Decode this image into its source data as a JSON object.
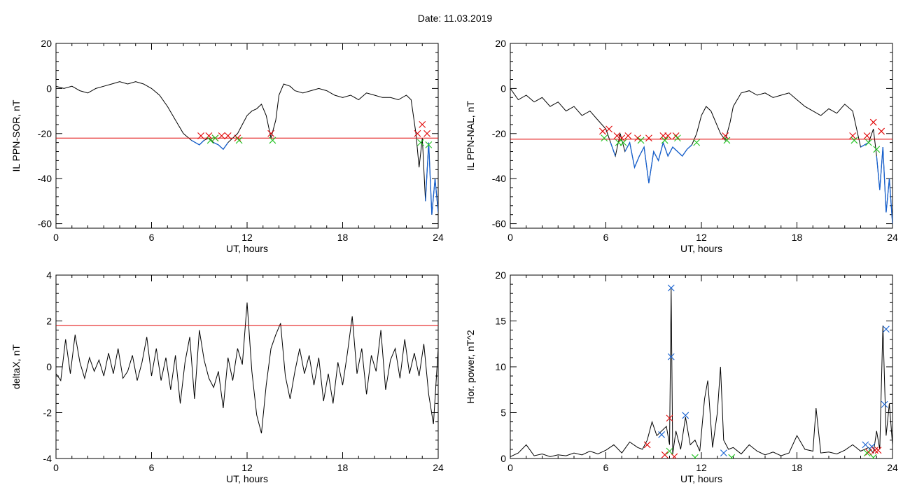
{
  "page": {
    "title": "Date:  11.03.2019"
  },
  "colors": {
    "threshold": "#e00000",
    "highlight": "#1560d0",
    "signal": "#000000",
    "marker_red": "#e00000",
    "marker_green": "#1fc21f",
    "marker_blue": "#1560d0"
  },
  "chart_data": [
    {
      "type": "line",
      "xlabel": "UT, hours",
      "ylabel": "IL PPN-SOR, nT",
      "xlim": [
        0,
        24
      ],
      "ylim": [
        -62,
        20
      ],
      "xticks": [
        0,
        6,
        12,
        18,
        24
      ],
      "yticks": [
        20,
        0,
        -20,
        -40,
        -60
      ],
      "threshold": -22,
      "series": [
        {
          "x": [
            0,
            0.5,
            1,
            1.5,
            2,
            2.5,
            3,
            3.5,
            4,
            4.5,
            5,
            5.5,
            6,
            6.5,
            7,
            7.5,
            8,
            8.5,
            9,
            9.3,
            9.6,
            9.9,
            10.2,
            10.5,
            10.8,
            11.1,
            11.4,
            11.7,
            12,
            12.3,
            12.6,
            12.9,
            13.2,
            13.5,
            13.8,
            14,
            14.3,
            14.7,
            15,
            15.5,
            16,
            16.5,
            17,
            17.5,
            18,
            18.5,
            19,
            19.5,
            20,
            20.5,
            21,
            21.5,
            22,
            22.3,
            22.6,
            22.8,
            23,
            23.2,
            23.4,
            23.6,
            23.8,
            24
          ],
          "y": [
            1,
            0,
            1,
            -1,
            -2,
            0,
            1,
            2,
            3,
            2,
            3,
            2,
            0,
            -3,
            -8,
            -14,
            -20,
            -23,
            -25,
            -23,
            -22,
            -24,
            -25,
            -27,
            -24,
            -22,
            -20,
            -16,
            -12,
            -10,
            -9,
            -7,
            -12,
            -22,
            -14,
            -3,
            2,
            1,
            -1,
            -2,
            -1,
            0,
            -1,
            -3,
            -4,
            -3,
            -5,
            -2,
            -3,
            -4,
            -4,
            -5,
            -3,
            -5,
            -20,
            -35,
            -22,
            -50,
            -24,
            -56,
            -40,
            -55
          ]
        }
      ],
      "markers": {
        "red": {
          "x": [
            9.1,
            9.6,
            10.0,
            10.4,
            10.8,
            11.4,
            13.5,
            22.7,
            23.0,
            23.3
          ],
          "y": [
            -21,
            -21,
            -22,
            -21,
            -21,
            -22,
            -20,
            -20,
            -16,
            -20
          ]
        },
        "green": {
          "x": [
            9.7,
            10.0,
            11.5,
            13.6,
            22.9,
            23.4
          ],
          "y": [
            -23,
            -22,
            -23,
            -23,
            -24,
            -25
          ]
        }
      }
    },
    {
      "type": "line",
      "xlabel": "UT, hours",
      "ylabel": "IL PPN-NAL, nT",
      "xlim": [
        0,
        24
      ],
      "ylim": [
        -62,
        20
      ],
      "xticks": [
        0,
        6,
        12,
        18,
        24
      ],
      "yticks": [
        20,
        0,
        -20,
        -40,
        -60
      ],
      "threshold": -22.5,
      "series": [
        {
          "x": [
            0,
            0.5,
            1,
            1.5,
            2,
            2.5,
            3,
            3.5,
            4,
            4.5,
            5,
            5.5,
            6,
            6.3,
            6.6,
            6.9,
            7.2,
            7.5,
            7.8,
            8.1,
            8.4,
            8.7,
            9,
            9.3,
            9.6,
            9.9,
            10.2,
            10.5,
            10.8,
            11.1,
            11.4,
            11.7,
            12,
            12.3,
            12.6,
            12.9,
            13.2,
            13.5,
            13.8,
            14,
            14.5,
            15,
            15.5,
            16,
            16.5,
            17,
            17.5,
            18,
            18.5,
            19,
            19.5,
            20,
            20.5,
            21,
            21.5,
            22,
            22.5,
            22.8,
            23,
            23.2,
            23.4,
            23.6,
            23.8,
            24
          ],
          "y": [
            0,
            -5,
            -3,
            -6,
            -4,
            -8,
            -6,
            -10,
            -8,
            -12,
            -10,
            -14,
            -18,
            -24,
            -30,
            -20,
            -28,
            -24,
            -35,
            -30,
            -26,
            -42,
            -28,
            -32,
            -24,
            -30,
            -26,
            -28,
            -30,
            -27,
            -25,
            -20,
            -12,
            -8,
            -10,
            -15,
            -20,
            -23,
            -15,
            -8,
            -2,
            -1,
            -3,
            -2,
            -4,
            -3,
            -2,
            -5,
            -8,
            -10,
            -12,
            -9,
            -11,
            -7,
            -10,
            -26,
            -24,
            -18,
            -30,
            -45,
            -26,
            -55,
            -40,
            -60
          ]
        }
      ],
      "markers": {
        "red": {
          "x": [
            5.8,
            6.2,
            6.7,
            7.0,
            7.4,
            8.0,
            8.7,
            9.6,
            9.9,
            10.4,
            13.5,
            21.5,
            22.4,
            22.8,
            23.3
          ],
          "y": [
            -19,
            -18,
            -21,
            -22,
            -21,
            -22,
            -22,
            -21,
            -21,
            -21,
            -21,
            -21,
            -21,
            -15,
            -19
          ]
        },
        "green": {
          "x": [
            5.9,
            6.8,
            7.1,
            8.2,
            9.7,
            10.5,
            11.7,
            13.6,
            21.6,
            22.5,
            23.0
          ],
          "y": [
            -22,
            -24,
            -24,
            -23,
            -23,
            -22,
            -24,
            -23,
            -23,
            -24,
            -27
          ]
        }
      }
    },
    {
      "type": "line",
      "xlabel": "UT, hours",
      "ylabel": "deltaX, nT",
      "xlim": [
        0,
        24
      ],
      "ylim": [
        -4,
        4
      ],
      "xticks": [
        0,
        6,
        12,
        18,
        24
      ],
      "yticks": [
        4,
        2,
        0,
        -2,
        -4
      ],
      "threshold": 1.8,
      "series": [
        {
          "x": [
            0,
            0.3,
            0.6,
            0.9,
            1.2,
            1.5,
            1.8,
            2.1,
            2.4,
            2.7,
            3.0,
            3.3,
            3.6,
            3.9,
            4.2,
            4.5,
            4.8,
            5.1,
            5.4,
            5.7,
            6.0,
            6.3,
            6.6,
            6.9,
            7.2,
            7.5,
            7.8,
            8.1,
            8.4,
            8.7,
            9.0,
            9.3,
            9.6,
            9.9,
            10.2,
            10.5,
            10.8,
            11.1,
            11.4,
            11.7,
            12.0,
            12.3,
            12.6,
            12.9,
            13.2,
            13.5,
            13.8,
            14.1,
            14.4,
            14.7,
            15.0,
            15.3,
            15.6,
            15.9,
            16.2,
            16.5,
            16.8,
            17.1,
            17.4,
            17.7,
            18.0,
            18.3,
            18.6,
            18.9,
            19.2,
            19.5,
            19.8,
            20.1,
            20.4,
            20.7,
            21.0,
            21.3,
            21.6,
            21.9,
            22.2,
            22.5,
            22.8,
            23.1,
            23.4,
            23.7,
            24.0
          ],
          "y": [
            -0.3,
            -0.6,
            1.2,
            -0.3,
            1.4,
            0.2,
            -0.5,
            0.4,
            -0.2,
            0.3,
            -0.4,
            0.6,
            -0.3,
            0.8,
            -0.5,
            -0.2,
            0.5,
            -0.6,
            0.2,
            1.3,
            -0.4,
            0.8,
            -0.6,
            0.4,
            -1.0,
            0.5,
            -1.6,
            0.2,
            1.3,
            -1.4,
            1.6,
            0.3,
            -0.5,
            -0.9,
            -0.2,
            -1.8,
            0.4,
            -0.6,
            0.8,
            0.1,
            2.8,
            -0.2,
            -2.1,
            -2.9,
            -0.8,
            0.8,
            1.4,
            1.9,
            -0.4,
            -1.4,
            -0.2,
            0.8,
            -0.3,
            0.5,
            -0.8,
            0.4,
            -1.5,
            -0.3,
            -1.6,
            0.2,
            -0.8,
            0.6,
            2.2,
            -0.3,
            0.8,
            -1.2,
            0.5,
            -0.2,
            1.6,
            -1.0,
            0.3,
            0.8,
            -0.5,
            1.2,
            -0.3,
            0.6,
            -0.4,
            1.0,
            -1.2,
            -2.5,
            0.8
          ]
        }
      ]
    },
    {
      "type": "line",
      "xlabel": "UT, hours",
      "ylabel": "Hor. power, nT^2",
      "xlim": [
        0,
        24
      ],
      "ylim": [
        0,
        20
      ],
      "xticks": [
        0,
        6,
        12,
        18,
        24
      ],
      "yticks": [
        20,
        15,
        10,
        5,
        0
      ],
      "series": [
        {
          "x": [
            0,
            0.5,
            1,
            1.5,
            2,
            2.5,
            3,
            3.5,
            4,
            4.5,
            5,
            5.5,
            6,
            6.5,
            7,
            7.5,
            8,
            8.3,
            8.6,
            8.9,
            9.2,
            9.5,
            9.8,
            10.0,
            10.1,
            10.2,
            10.4,
            10.7,
            11.0,
            11.3,
            11.6,
            11.9,
            12.2,
            12.4,
            12.7,
            13.0,
            13.2,
            13.4,
            13.7,
            14.0,
            14.5,
            15.0,
            15.5,
            16,
            16.5,
            17,
            17.5,
            18,
            18.5,
            19,
            19.2,
            19.5,
            20,
            20.5,
            21,
            21.5,
            22,
            22.5,
            22.8,
            23.0,
            23.2,
            23.4,
            23.6,
            23.8,
            24
          ],
          "y": [
            0.2,
            0.6,
            1.5,
            0.3,
            0.5,
            0.2,
            0.4,
            0.3,
            0.6,
            0.4,
            0.8,
            0.5,
            0.9,
            1.5,
            0.6,
            1.8,
            1.2,
            1.0,
            2.0,
            4.0,
            2.5,
            3.0,
            3.5,
            1.5,
            18.5,
            0.5,
            3.0,
            1.0,
            4.5,
            1.5,
            2.0,
            0.8,
            6.5,
            8.5,
            1.2,
            5.0,
            10.0,
            2.0,
            1.0,
            1.2,
            0.5,
            1.5,
            0.8,
            0.4,
            0.7,
            0.3,
            0.6,
            2.5,
            1.0,
            0.8,
            5.5,
            0.6,
            0.7,
            0.5,
            0.9,
            1.5,
            0.8,
            1.2,
            0.6,
            3.0,
            1.0,
            14.5,
            2.5,
            6.0,
            1.5
          ]
        }
      ],
      "markers": {
        "blue": {
          "x": [
            9.5,
            10.1,
            10.1,
            11.0,
            13.4,
            22.3,
            22.7,
            23.6,
            23.5
          ],
          "y": [
            2.6,
            18.6,
            11.1,
            4.7,
            0.6,
            1.5,
            1.3,
            14.1,
            5.9
          ]
        },
        "red": {
          "x": [
            8.6,
            9.7,
            10.0,
            10.3,
            22.5,
            22.9,
            23.1
          ],
          "y": [
            1.5,
            0.4,
            4.4,
            0.2,
            0.7,
            0.9,
            0.9
          ]
        },
        "green": {
          "x": [
            10.0,
            11.6,
            13.9,
            22.4,
            22.8
          ],
          "y": [
            0.8,
            0.1,
            0.1,
            0.6,
            0.1
          ]
        }
      }
    }
  ]
}
